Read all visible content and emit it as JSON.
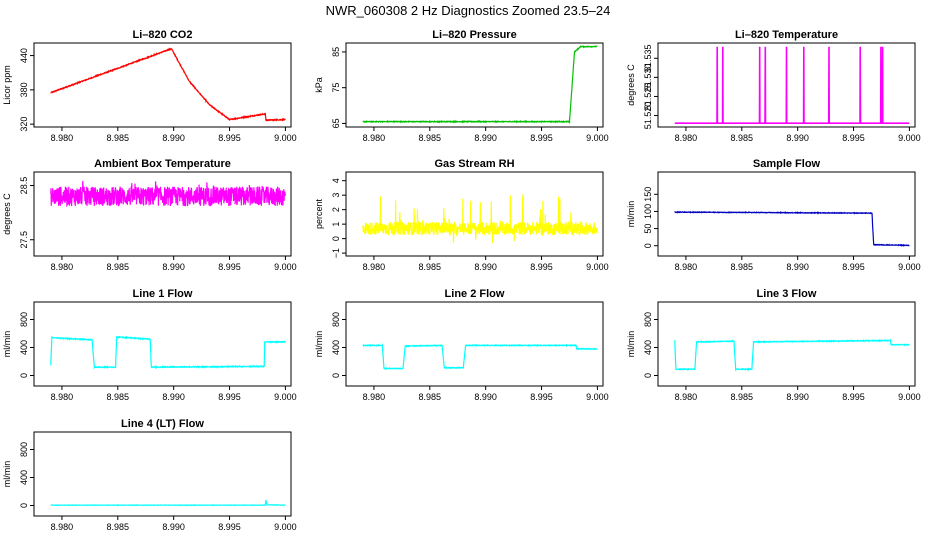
{
  "title": "NWR_060308  2 Hz Diagnostics Zoomed 23.5–24",
  "chart_data": [
    {
      "type": "line",
      "title": "Li–820 CO2",
      "ylabel": "Licor ppm",
      "color": "#ff0000",
      "xlim": [
        8.9775,
        9.0005
      ],
      "ylim": [
        315,
        462
      ],
      "xticks": [
        8.98,
        8.985,
        8.99,
        8.995,
        9.0
      ],
      "xtick_labels": [
        "8.980",
        "8.985",
        "8.990",
        "8.995",
        "9.000"
      ],
      "yticks": [
        320,
        380,
        440
      ],
      "ytick_labels": [
        "320",
        "380",
        "440"
      ],
      "pattern": "steps",
      "noise": 0.8,
      "steps": [
        [
          8.979,
          375
        ],
        [
          8.9898,
          452
        ],
        [
          8.9914,
          395
        ],
        [
          8.9932,
          354
        ],
        [
          8.995,
          328
        ],
        [
          8.9982,
          338
        ],
        [
          8.99825,
          327
        ],
        [
          9.0,
          328
        ]
      ]
    },
    {
      "type": "line",
      "title": "Li–820 Pressure",
      "ylabel": "kPa",
      "color": "#00c000",
      "xlim": [
        8.9775,
        9.0005
      ],
      "ylim": [
        64,
        87.5
      ],
      "xticks": [
        8.98,
        8.985,
        8.99,
        8.995,
        9.0
      ],
      "xtick_labels": [
        "8.980",
        "8.985",
        "8.990",
        "8.995",
        "9.000"
      ],
      "yticks": [
        65,
        75,
        85
      ],
      "ytick_labels": [
        "65",
        "75",
        "85"
      ],
      "pattern": "steps",
      "noise": 0.1,
      "steps": [
        [
          8.979,
          65.5
        ],
        [
          8.9975,
          65.5
        ],
        [
          8.99795,
          85
        ],
        [
          8.9985,
          86.5
        ],
        [
          9.0,
          86.5
        ]
      ]
    },
    {
      "type": "line",
      "title": "Li–820 Temperature",
      "ylabel": "degrees C",
      "color": "#ff00ff",
      "xlim": [
        8.9775,
        9.0005
      ],
      "ylim": [
        51.517,
        51.539
      ],
      "xticks": [
        8.98,
        8.985,
        8.99,
        8.995,
        9.0
      ],
      "xtick_labels": [
        "8.980",
        "8.985",
        "8.990",
        "8.995",
        "9.000"
      ],
      "yticks": [
        51.52,
        51.525,
        51.53,
        51.535
      ],
      "ytick_labels": [
        "51.520",
        "51.525",
        "51.530",
        "51.535"
      ],
      "pattern": "spikes",
      "baseline": 51.518,
      "spike_top": 51.538,
      "spike_x": [
        8.9828,
        8.9833,
        8.9866,
        8.9871,
        8.989,
        8.99055,
        8.9928,
        8.9956,
        8.99745,
        8.9976
      ]
    },
    {
      "type": "line",
      "title": "Ambient Box Temperature",
      "ylabel": "degrees C",
      "color": "#ff00ff",
      "xlim": [
        8.9775,
        9.0005
      ],
      "ylim": [
        27.2,
        28.75
      ],
      "xticks": [
        8.98,
        8.985,
        8.99,
        8.995,
        9.0
      ],
      "xtick_labels": [
        "8.980",
        "8.985",
        "8.990",
        "8.995",
        "9.000"
      ],
      "yticks": [
        27.5,
        28.5
      ],
      "ytick_labels": [
        "27.5",
        "28.5"
      ],
      "pattern": "noise",
      "center": 28.3,
      "amp": 0.18,
      "outlier_amp": 0.42
    },
    {
      "type": "line",
      "title": "Gas Stream RH",
      "ylabel": "percent",
      "color": "#ffff00",
      "xlim": [
        8.9775,
        9.0005
      ],
      "ylim": [
        -1.2,
        4.6
      ],
      "xticks": [
        8.98,
        8.985,
        8.99,
        8.995,
        9.0
      ],
      "xtick_labels": [
        "8.980",
        "8.985",
        "8.990",
        "8.995",
        "9.000"
      ],
      "yticks": [
        -1,
        0,
        1,
        2,
        3,
        4
      ],
      "ytick_labels": [
        "−1",
        "0",
        "1",
        "2",
        "3",
        "4"
      ],
      "pattern": "noise",
      "center": 0.7,
      "amp": 0.45,
      "outlier_amp": 3.4
    },
    {
      "type": "line",
      "title": "Sample Flow",
      "ylabel": "ml/min",
      "color": "#0000c0",
      "xlim": [
        8.9775,
        9.0005
      ],
      "ylim": [
        -30,
        215
      ],
      "xticks": [
        8.98,
        8.985,
        8.99,
        8.995,
        9.0
      ],
      "xtick_labels": [
        "8.980",
        "8.985",
        "8.990",
        "8.995",
        "9.000"
      ],
      "yticks": [
        0,
        50,
        100,
        150
      ],
      "ytick_labels": [
        "0",
        "50",
        "100",
        "150"
      ],
      "pattern": "steps",
      "noise": 0.8,
      "steps": [
        [
          8.979,
          98
        ],
        [
          8.99665,
          95
        ],
        [
          8.9968,
          3
        ],
        [
          9.0,
          1
        ]
      ]
    },
    {
      "type": "line",
      "title": "Line 1 Flow",
      "ylabel": "ml/min",
      "color": "#00ffff",
      "xlim": [
        8.9775,
        9.0005
      ],
      "ylim": [
        -150,
        1050
      ],
      "xticks": [
        8.98,
        8.985,
        8.99,
        8.995,
        9.0
      ],
      "xtick_labels": [
        "8.980",
        "8.985",
        "8.990",
        "8.995",
        "9.000"
      ],
      "yticks": [
        0,
        400,
        800
      ],
      "ytick_labels": [
        "0",
        "400",
        "800"
      ],
      "pattern": "steps",
      "noise": 6,
      "steps": [
        [
          8.979,
          140
        ],
        [
          8.9791,
          540
        ],
        [
          8.9827,
          510
        ],
        [
          8.9829,
          120
        ],
        [
          8.9848,
          120
        ],
        [
          8.9849,
          550
        ],
        [
          8.9879,
          520
        ],
        [
          8.988,
          120
        ],
        [
          8.9981,
          130
        ],
        [
          8.99815,
          480
        ],
        [
          9.0,
          480
        ]
      ]
    },
    {
      "type": "line",
      "title": "Line 2 Flow",
      "ylabel": "ml/min",
      "color": "#00ffff",
      "xlim": [
        8.9775,
        9.0005
      ],
      "ylim": [
        -150,
        1050
      ],
      "xticks": [
        8.98,
        8.985,
        8.99,
        8.995,
        9.0
      ],
      "xtick_labels": [
        "8.980",
        "8.985",
        "8.990",
        "8.995",
        "9.000"
      ],
      "yticks": [
        0,
        400,
        800
      ],
      "ytick_labels": [
        "0",
        "400",
        "800"
      ],
      "pattern": "steps",
      "noise": 5,
      "steps": [
        [
          8.979,
          430
        ],
        [
          8.98075,
          430
        ],
        [
          8.9809,
          100
        ],
        [
          8.9826,
          100
        ],
        [
          8.9828,
          420
        ],
        [
          8.9861,
          430
        ],
        [
          8.9863,
          110
        ],
        [
          8.988,
          110
        ],
        [
          8.9882,
          430
        ],
        [
          8.9981,
          430
        ],
        [
          8.99815,
          380
        ],
        [
          9.0,
          380
        ]
      ]
    },
    {
      "type": "line",
      "title": "Line 3 Flow",
      "ylabel": "ml/min",
      "color": "#00ffff",
      "xlim": [
        8.9775,
        9.0005
      ],
      "ylim": [
        -150,
        1050
      ],
      "xticks": [
        8.98,
        8.985,
        8.99,
        8.995,
        9.0
      ],
      "xtick_labels": [
        "8.980",
        "8.985",
        "8.990",
        "8.995",
        "9.000"
      ],
      "yticks": [
        0,
        400,
        800
      ],
      "ytick_labels": [
        "0",
        "400",
        "800"
      ],
      "pattern": "steps",
      "noise": 5,
      "steps": [
        [
          8.979,
          500
        ],
        [
          8.9791,
          90
        ],
        [
          8.9808,
          90
        ],
        [
          8.98095,
          480
        ],
        [
          8.9843,
          490
        ],
        [
          8.98445,
          90
        ],
        [
          8.9859,
          90
        ],
        [
          8.98605,
          480
        ],
        [
          8.9983,
          500
        ],
        [
          8.99835,
          440
        ],
        [
          9.0,
          440
        ]
      ]
    },
    {
      "type": "line",
      "title": "Line 4 (LT) Flow",
      "ylabel": "ml/min",
      "color": "#00ffff",
      "xlim": [
        8.9775,
        9.0005
      ],
      "ylim": [
        -150,
        1050
      ],
      "xticks": [
        8.98,
        8.985,
        8.99,
        8.995,
        9.0
      ],
      "xtick_labels": [
        "8.980",
        "8.985",
        "8.990",
        "8.995",
        "9.000"
      ],
      "yticks": [
        0,
        400,
        800
      ],
      "ytick_labels": [
        "0",
        "400",
        "800"
      ],
      "pattern": "steps",
      "noise": 2,
      "steps": [
        [
          8.979,
          5
        ],
        [
          8.9982,
          5
        ],
        [
          8.99825,
          80
        ],
        [
          8.99835,
          10
        ],
        [
          9.0,
          5
        ]
      ]
    }
  ]
}
